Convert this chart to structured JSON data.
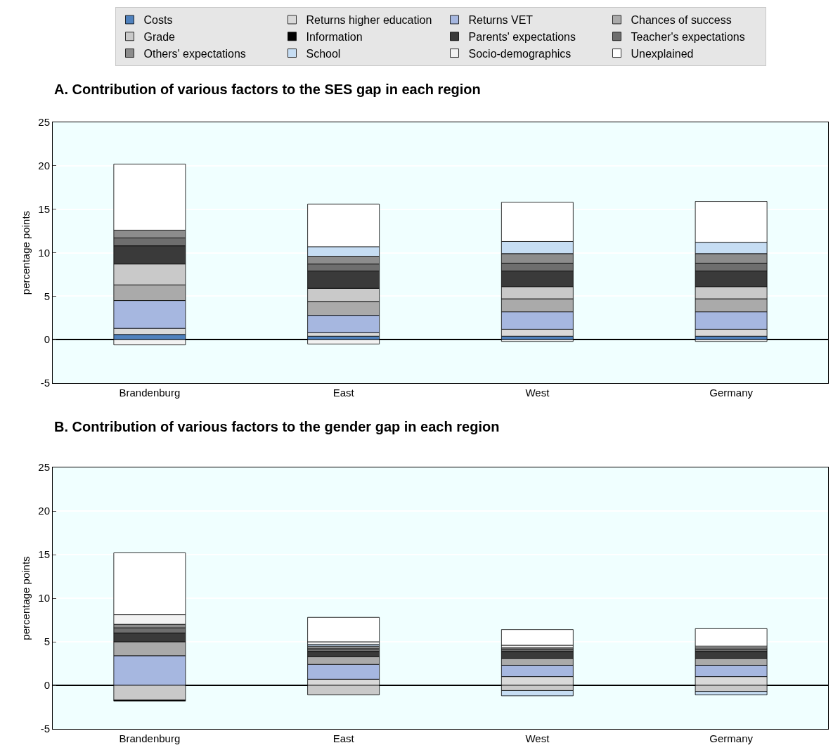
{
  "chart_data": [
    {
      "type": "bar",
      "stacked": true,
      "title": "A. Contribution of various factors to the SES gap in each region",
      "ylabel": "percentage points",
      "categories": [
        "Brandenburg",
        "East",
        "West",
        "Germany"
      ],
      "ylim": [
        -5,
        25
      ],
      "yticks": [
        -5,
        0,
        5,
        10,
        15,
        20,
        25
      ],
      "grid": "y",
      "legend": "top",
      "series": [
        {
          "name": "Costs",
          "color": "#4f81bd",
          "values": [
            0.6,
            0.4,
            0.4,
            0.4
          ]
        },
        {
          "name": "Returns higher education",
          "color": "#d9d9d9",
          "values": [
            0.7,
            0.4,
            0.8,
            0.8
          ]
        },
        {
          "name": "Returns VET",
          "color": "#a6b7e0",
          "values": [
            3.2,
            2.0,
            2.0,
            2.0
          ]
        },
        {
          "name": "Chances of success",
          "color": "#aaaaaa",
          "values": [
            1.8,
            1.6,
            1.5,
            1.5
          ]
        },
        {
          "name": "Grade",
          "color": "#c9c9c9",
          "values": [
            2.4,
            1.5,
            1.4,
            1.4
          ]
        },
        {
          "name": "Information",
          "color": "#000000",
          "values": [
            null,
            null,
            null,
            null
          ]
        },
        {
          "name": "Parents' expectations",
          "color": "#3a3a3a",
          "values": [
            2.1,
            2.0,
            1.8,
            1.8
          ]
        },
        {
          "name": "Teacher's expectations",
          "color": "#6e6e6e",
          "values": [
            0.9,
            0.8,
            0.9,
            0.9
          ]
        },
        {
          "name": "Others' expectations",
          "color": "#8c8c8c",
          "values": [
            0.9,
            0.9,
            1.1,
            1.1
          ]
        },
        {
          "name": "School",
          "color": "#c6ddf3",
          "values": [
            null,
            1.1,
            1.4,
            1.3
          ]
        },
        {
          "name": "Socio-demographics",
          "color": "#f2f2f2",
          "values": [
            -0.6,
            -0.5,
            -0.2,
            -0.2
          ]
        },
        {
          "name": "Unexplained",
          "color": "#ffffff",
          "values": [
            7.6,
            4.9,
            4.5,
            4.7
          ]
        }
      ]
    },
    {
      "type": "bar",
      "stacked": true,
      "title": "B. Contribution of various factors to the gender gap in each region",
      "ylabel": "percentage points",
      "categories": [
        "Brandenburg",
        "East",
        "West",
        "Germany"
      ],
      "ylim": [
        -5,
        25
      ],
      "yticks": [
        -5,
        0,
        5,
        10,
        15,
        20,
        25
      ],
      "grid": "y",
      "series": [
        {
          "color": "#4f81bd",
          "values": [
            null,
            null,
            null,
            null
          ]
        },
        {
          "color": "#d9d9d9",
          "values": [
            null,
            0.7,
            1.0,
            1.0
          ]
        },
        {
          "color": "#a6b7e0",
          "values": [
            3.4,
            1.7,
            1.3,
            1.3
          ]
        },
        {
          "color": "#aaaaaa",
          "values": [
            1.6,
            0.9,
            0.8,
            0.8
          ]
        },
        {
          "color": "#c9c9c9",
          "values": [
            -1.7,
            -1.1,
            -0.6,
            -0.7
          ]
        },
        {
          "color": "#000000",
          "values": [
            -0.1,
            null,
            null,
            null
          ]
        },
        {
          "color": "#3a3a3a",
          "values": [
            1.0,
            0.6,
            0.8,
            0.8
          ]
        },
        {
          "color": "#6e6e6e",
          "values": [
            0.6,
            0.3,
            0.2,
            0.2
          ]
        },
        {
          "color": "#8c8c8c",
          "values": [
            0.4,
            0.3,
            0.2,
            0.2
          ]
        },
        {
          "color": "#c6ddf3",
          "values": [
            null,
            0.2,
            -0.6,
            -0.4
          ]
        },
        {
          "color": "#f2f2f2",
          "values": [
            1.1,
            0.3,
            0.3,
            0.2
          ]
        },
        {
          "color": "#ffffff",
          "values": [
            7.1,
            2.8,
            1.8,
            2.0
          ]
        }
      ]
    }
  ]
}
